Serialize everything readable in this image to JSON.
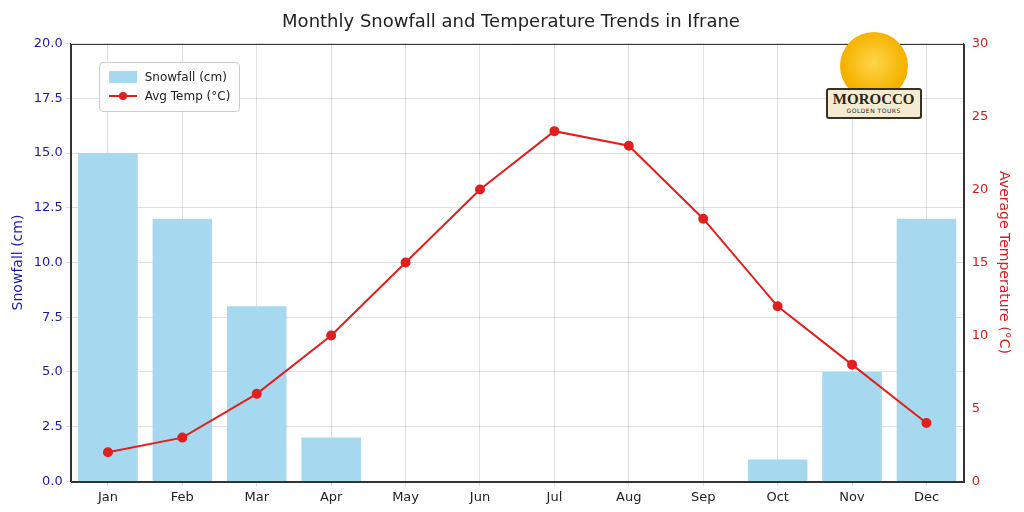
{
  "chart_data": {
    "type": "bar",
    "title": "Monthly Snowfall and Temperature Trends in Ifrane",
    "categories": [
      "Jan",
      "Feb",
      "Mar",
      "Apr",
      "May",
      "Jun",
      "Jul",
      "Aug",
      "Sep",
      "Oct",
      "Nov",
      "Dec"
    ],
    "series": [
      {
        "name": "Snowfall (cm)",
        "type": "bar",
        "color": "#a6d9ef",
        "values": [
          15,
          12,
          8,
          2,
          0,
          0,
          0,
          0,
          0,
          1,
          5,
          12
        ]
      },
      {
        "name": "Avg Temp (°C)",
        "type": "line",
        "axis": "y2",
        "color": "#e0201e",
        "marker": "circle",
        "line_style": "solid",
        "values": [
          2,
          3,
          6,
          10,
          15,
          20,
          24,
          23,
          18,
          12,
          8,
          4
        ]
      }
    ],
    "y_label": "Snowfall (cm)",
    "y2_label": "Average Temperature (°C)",
    "ylim": [
      0,
      20
    ],
    "yticks": [
      {
        "value": 0,
        "label": "0.0"
      },
      2.5,
      {
        "value": 5,
        "label": "5.0"
      },
      7.5,
      {
        "value": 10,
        "label": "10.0"
      },
      12.5,
      {
        "value": 15,
        "label": "15.0"
      },
      17.5,
      {
        "value": 20,
        "label": "20.0"
      }
    ],
    "y2lim": [
      0,
      30
    ],
    "y2ticks": [
      0,
      5,
      10,
      15,
      20,
      25,
      30
    ],
    "grid": true,
    "legend": "upper left",
    "annotations": [
      "MOROCCO",
      "GOLDEN TOURS"
    ]
  }
}
